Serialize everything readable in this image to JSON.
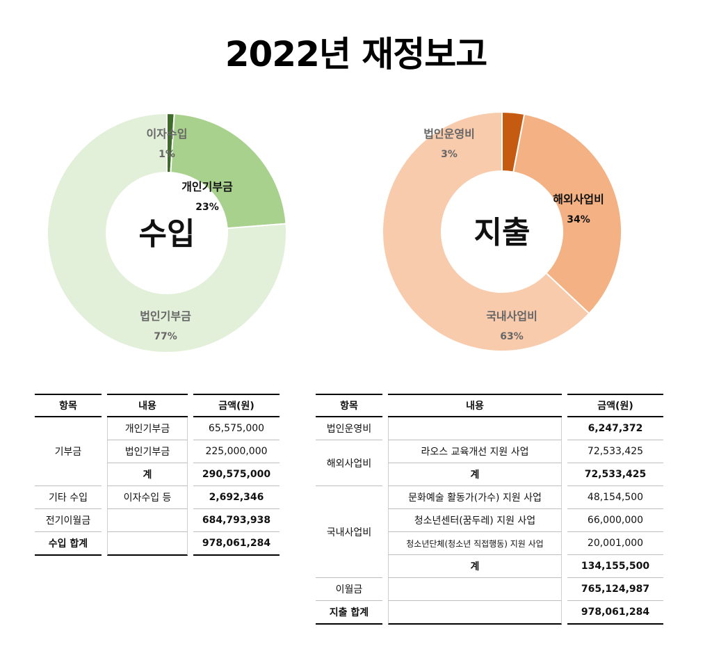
{
  "title": "2022년 재정보고",
  "chart_data": [
    {
      "type": "pie",
      "center_label": "수입",
      "categories": [
        "이자수입",
        "개인기부금",
        "법인기부금"
      ],
      "values": [
        1,
        23,
        77
      ],
      "colors": [
        "#3f6b2a",
        "#a9d18e",
        "#e2efd9"
      ],
      "label_colors": [
        "#666666",
        "#111111",
        "#666666"
      ],
      "labels": [
        "이자수입",
        "개인기부금",
        "법인기부금"
      ],
      "percents": [
        "1%",
        "23%",
        "77%"
      ]
    },
    {
      "type": "pie",
      "center_label": "지출",
      "categories": [
        "법인운영비",
        "해외사업비",
        "국내사업비"
      ],
      "values": [
        3,
        34,
        63
      ],
      "colors": [
        "#c55a11",
        "#f4b183",
        "#f8cbad"
      ],
      "label_colors": [
        "#666666",
        "#111111",
        "#666666"
      ],
      "labels": [
        "법인운영비",
        "해외사업비",
        "국내사업비"
      ],
      "percents": [
        "3%",
        "34%",
        "63%"
      ]
    }
  ],
  "income_table": {
    "headers": [
      "항목",
      "내용",
      "금액(원)"
    ],
    "rows": {
      "donation_category": "기부금",
      "personal_label": "개인기부금",
      "personal_amount": "65,575,000",
      "corporate_label": "법인기부금",
      "corporate_amount": "225,000,000",
      "donation_total_label": "계",
      "donation_total_amount": "290,575,000",
      "other_category": "기타 수입",
      "other_label": "이자수입 등",
      "other_amount": "2,692,346",
      "carry_category": "전기이월금",
      "carry_amount": "684,793,938",
      "total_category": "수입 합계",
      "total_amount": "978,061,284"
    }
  },
  "expense_table": {
    "headers": [
      "항목",
      "내용",
      "금액(원)"
    ],
    "rows": {
      "corp_category": "법인운영비",
      "corp_amount": "6,247,372",
      "overseas_category": "해외사업비",
      "laos_label": "라오스 교육개선 지원 사업",
      "laos_amount": "72,533,425",
      "overseas_total_label": "계",
      "overseas_total_amount": "72,533,425",
      "domestic_category": "국내사업비",
      "culture_label": "문화예술 활동가(가수) 지원 사업",
      "culture_amount": "48,154,500",
      "youth_center_label": "청소년센터(꿈두레) 지원 사업",
      "youth_center_amount": "66,000,000",
      "youth_group_label": "청소년단체(청소년 직접행동) 지원 사업",
      "youth_group_amount": "20,001,000",
      "domestic_total_label": "계",
      "domestic_total_amount": "134,155,500",
      "carry_category": "이월금",
      "carry_amount": "765,124,987",
      "total_category": "지출 합계",
      "total_amount": "978,061,284"
    }
  }
}
